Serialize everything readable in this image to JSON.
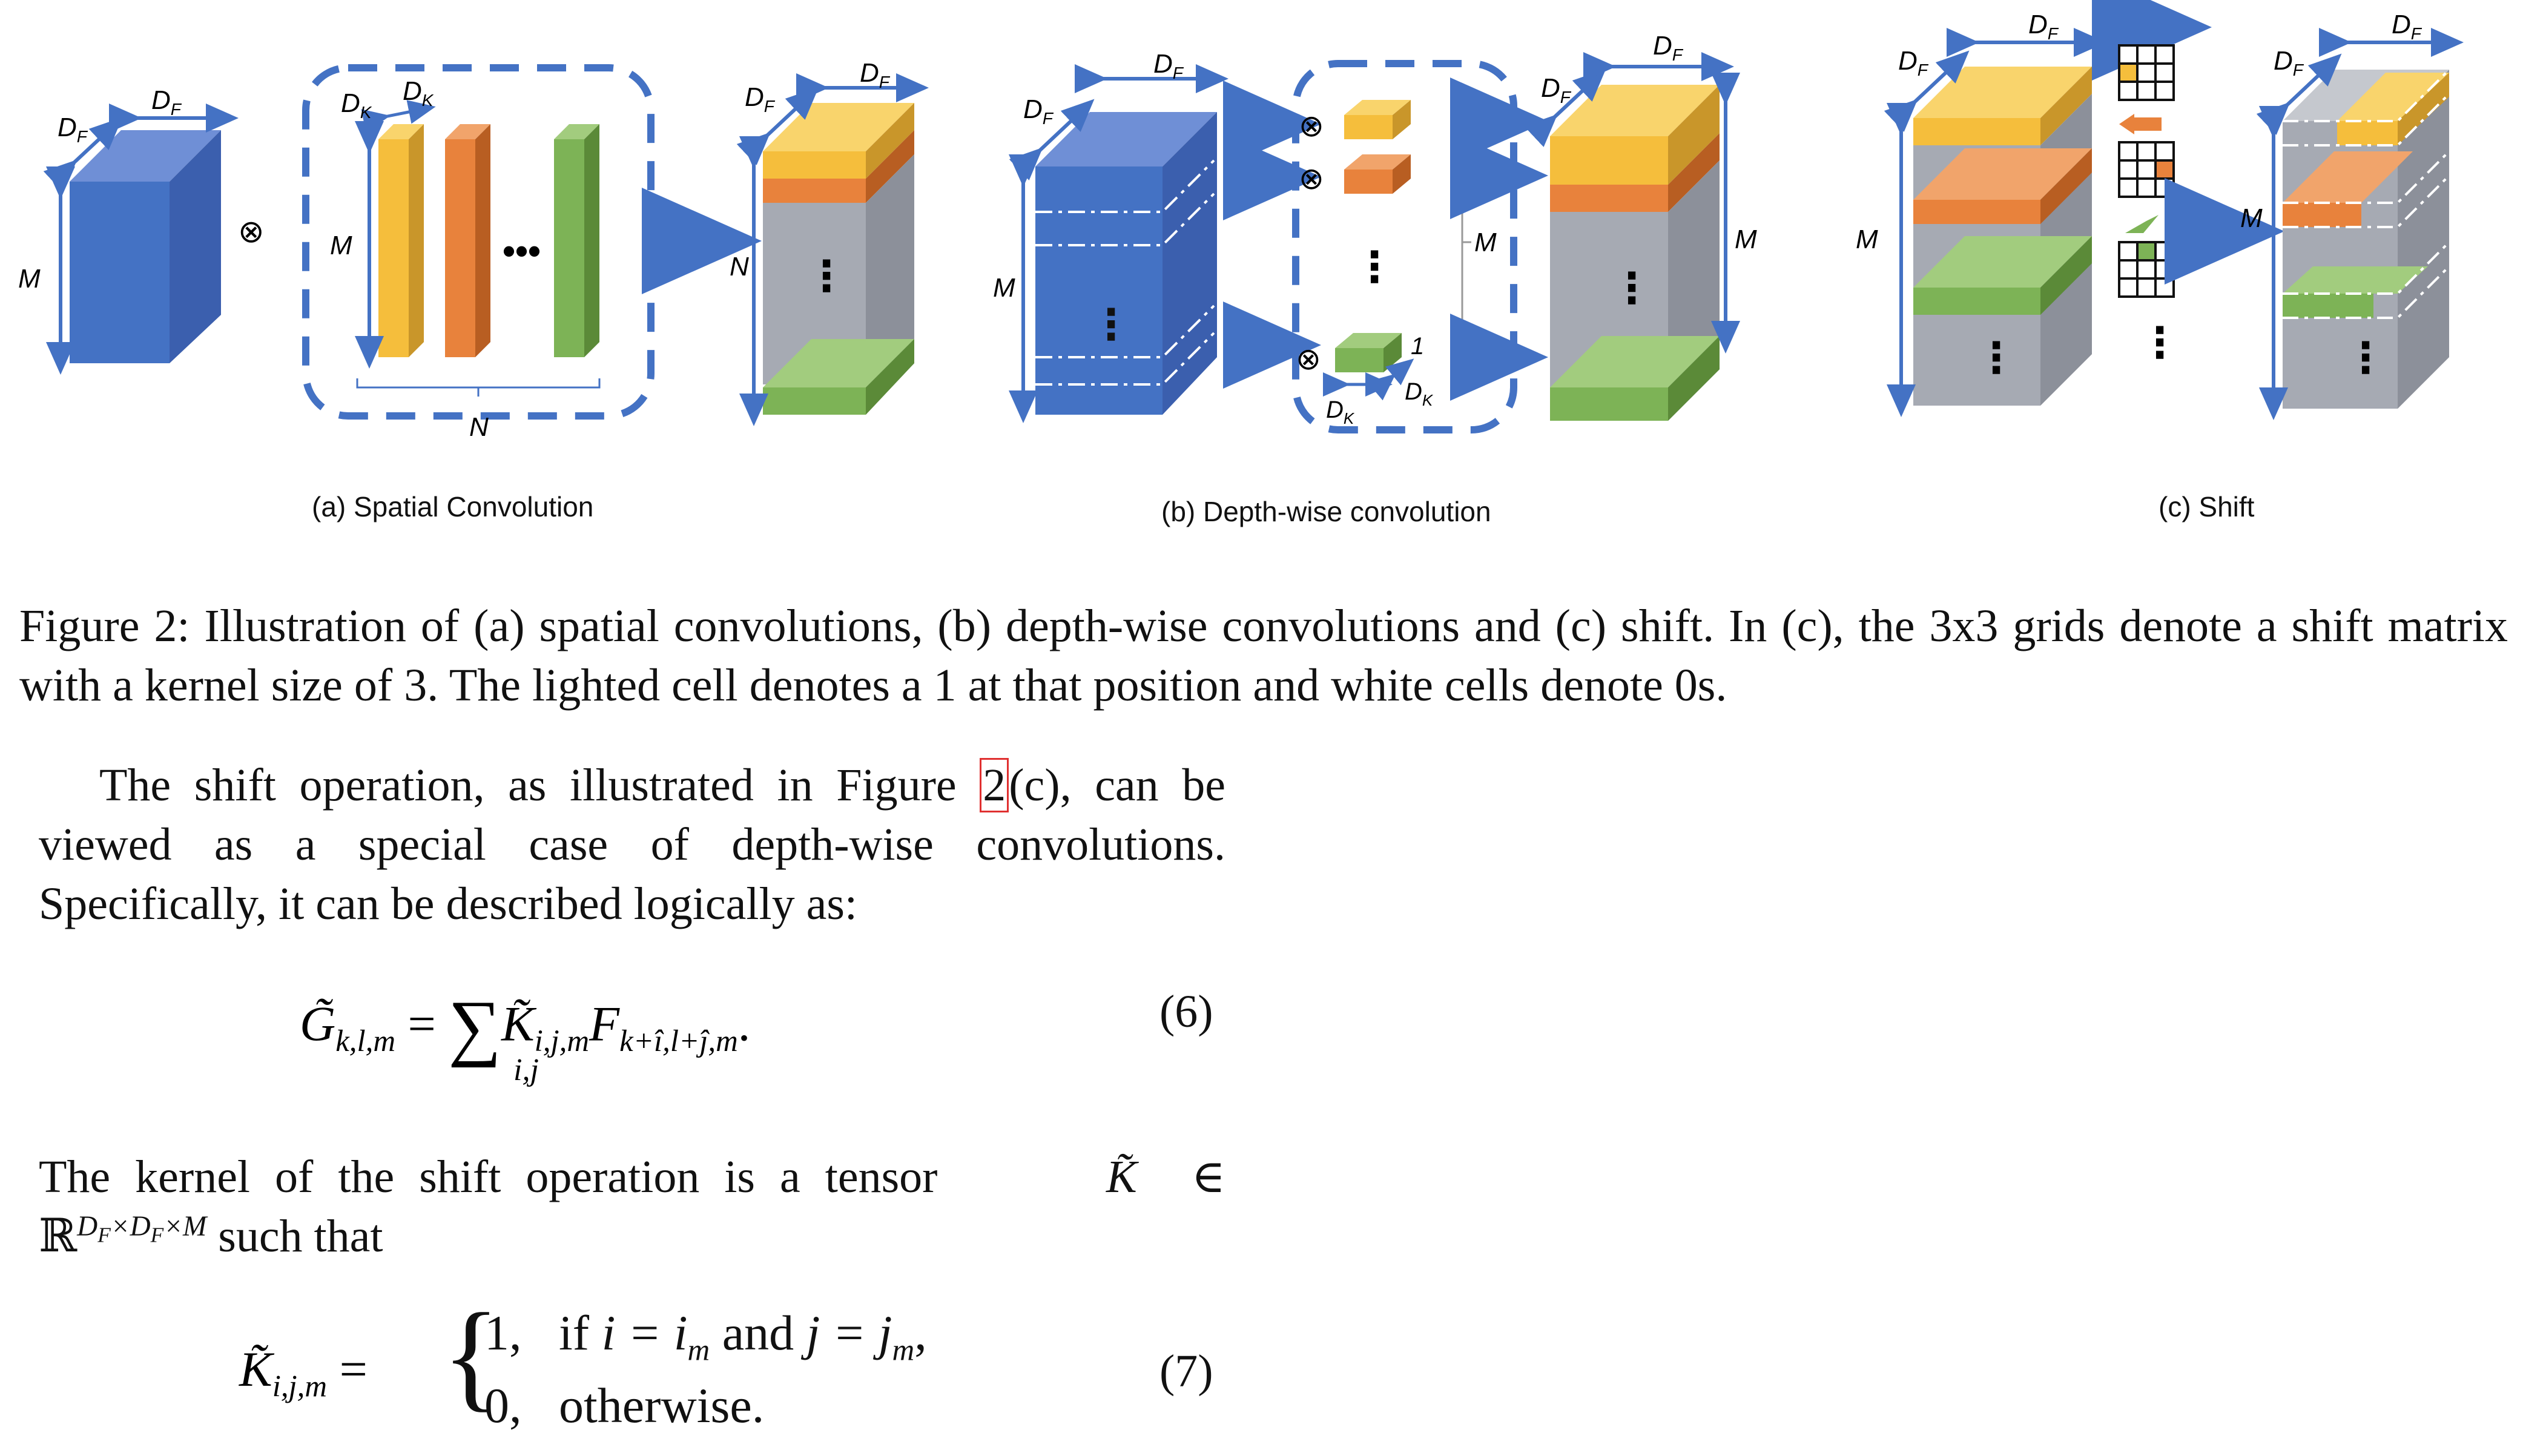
{
  "figure": {
    "labels": {
      "DF": "D",
      "DF_sub": "F",
      "DK": "D",
      "DK_sub": "K",
      "M": "M",
      "N": "N",
      "one": "1",
      "otimes": "⊗",
      "dots": "⋮",
      "hdots": "•••"
    },
    "subcaptions": {
      "a": "(a) Spatial Convolution",
      "b": "(b) Depth-wise convolution",
      "c": "(c) Shift"
    },
    "colors": {
      "blue": "#4472C4",
      "yellow": "#F5BE3C",
      "orange": "#E8823C",
      "green": "#7DB356",
      "gray": "#A6AAB3",
      "arrow": "#4472C4"
    }
  },
  "caption": "Figure 2: Illustration of (a) spatial convolutions, (b) depth-wise convolutions and (c) shift. In (c), the 3x3 grids denote a shift matrix with a kernel size of 3. The lighted cell denotes a 1 at that position and white cells denote 0s.",
  "para1": {
    "before_ref": "The shift operation, as illustrated in Figure ",
    "ref": "2",
    "after_ref": "(c), can be viewed as a special case of depth-wise convolutions. Specifically, it can be described logically as:"
  },
  "eq6": {
    "lhs": "G̃",
    "lhs_sub": "k,l,m",
    "equals": "=",
    "sum": "∑",
    "sum_sub": "i,j",
    "k": "K̃",
    "k_sub": "i,j,m",
    "f": "F",
    "f_sub": "k+î,l+ĵ,m",
    "end": ".",
    "number": "(6)"
  },
  "para2": {
    "text1": "The kernel of the shift operation is a tensor",
    "k": "K̃",
    "in": "∈",
    "r": "ℝ",
    "sup": "D_F×D_F×M",
    "text2": "such that"
  },
  "eq7": {
    "lhs": "K̃",
    "lhs_sub": "i,j,m",
    "equals": "=",
    "case1_val": "1,",
    "case1_cond_a": "if",
    "case1_cond_b": "i = i",
    "case1_cond_b_sub": "m",
    "case1_cond_c": "and",
    "case1_cond_d": "j = j",
    "case1_cond_d_sub": "m",
    "case1_end": ",",
    "case2_val": "0,",
    "case2_cond": "otherwise.",
    "number": "(7)"
  }
}
